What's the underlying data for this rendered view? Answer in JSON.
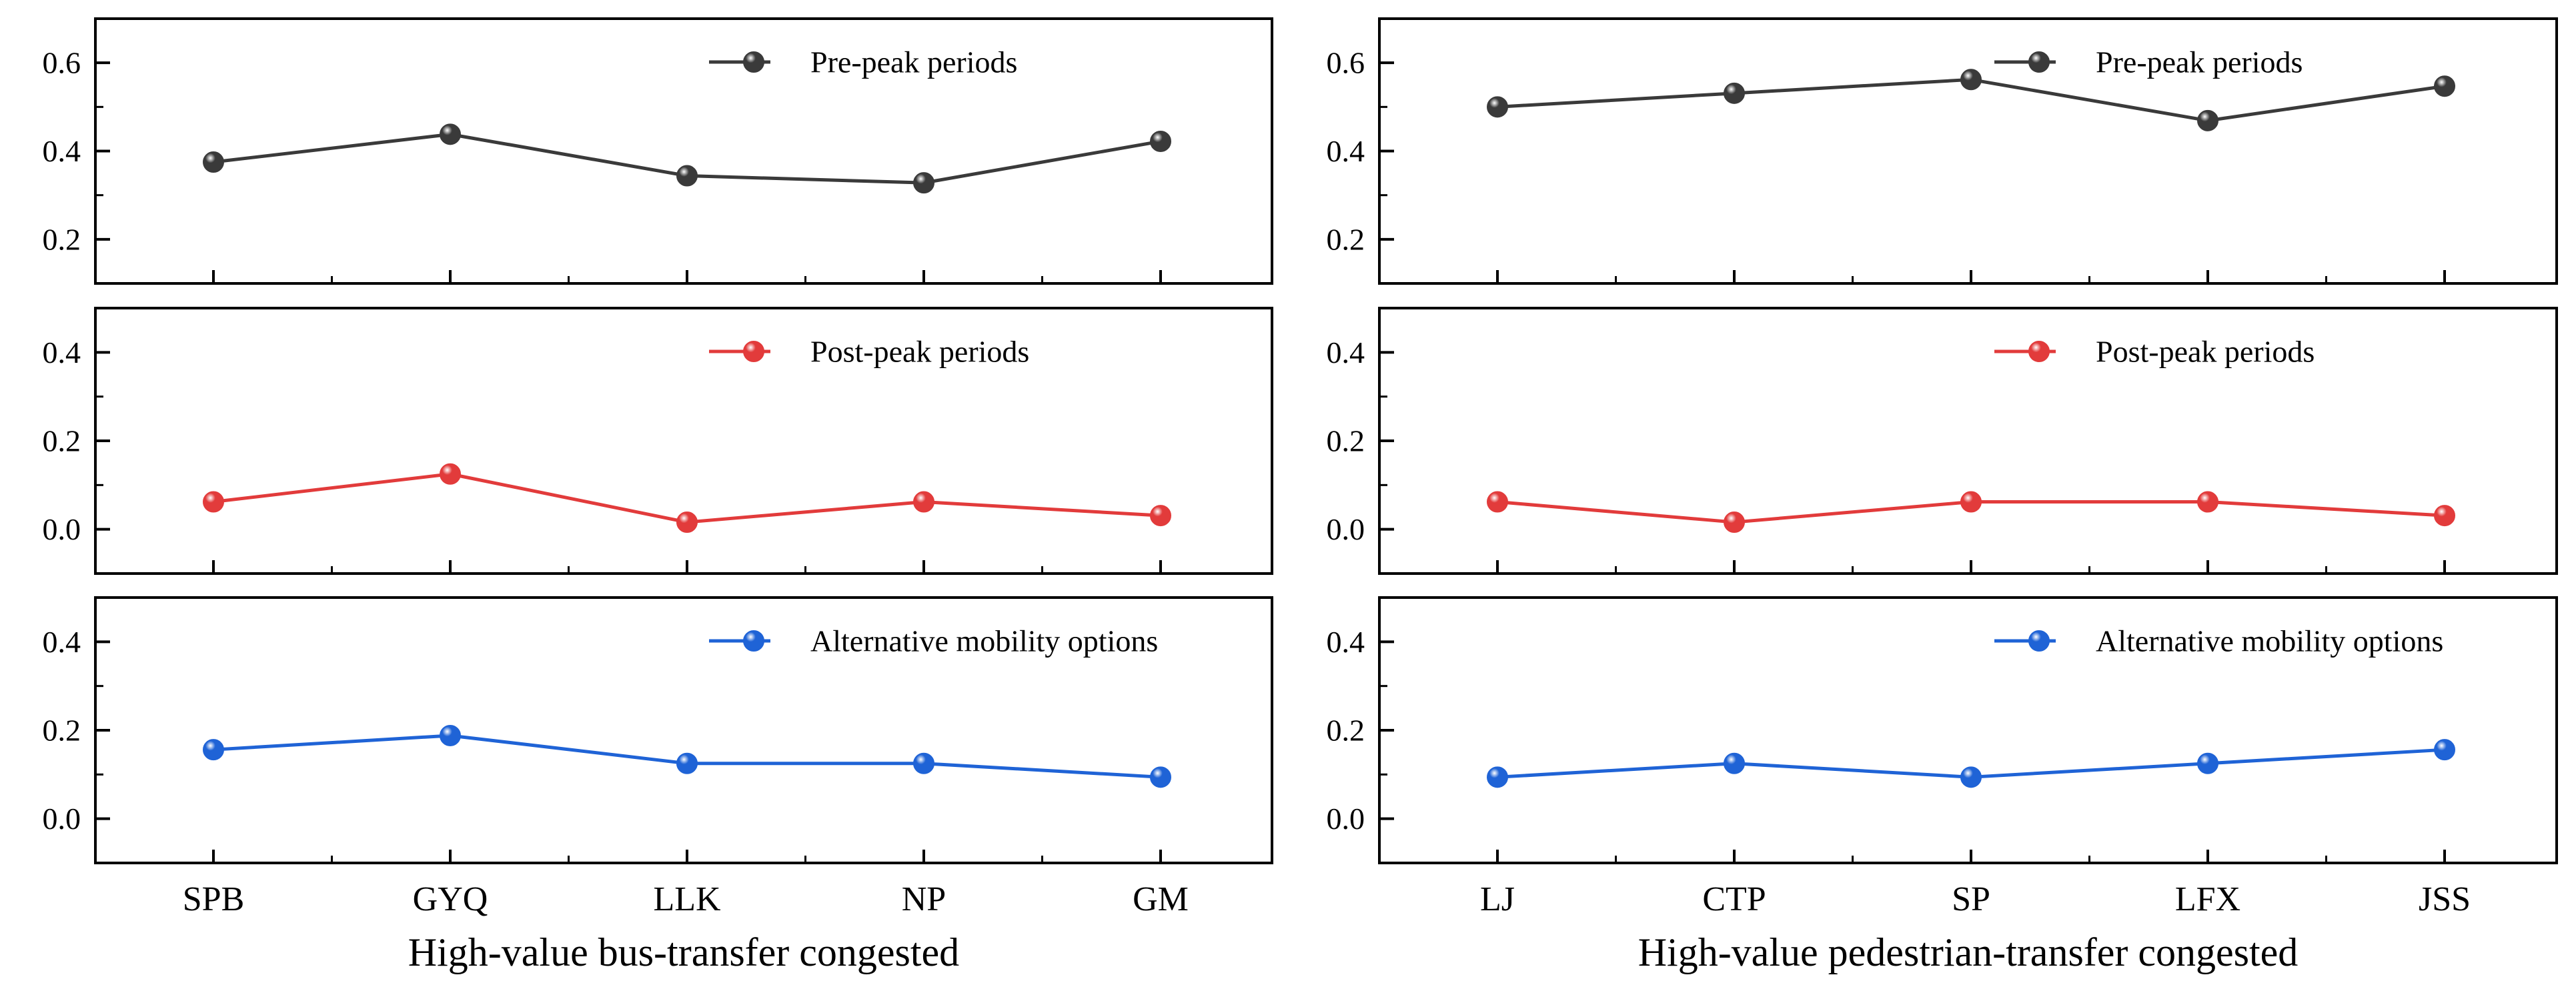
{
  "chart_data": [
    {
      "type": "line",
      "xlabel": "High-value bus-transfer congested",
      "categories": [
        "SPB",
        "GYQ",
        "LLK",
        "NP",
        "GM"
      ],
      "panels": [
        {
          "name": "Pre-peak periods",
          "color": "#3a3a3a",
          "ylim": [
            0.1,
            0.7
          ],
          "yticks": [
            0.2,
            0.4,
            0.6
          ],
          "tick_labels": [
            "0.2",
            "0.4",
            "0.6"
          ],
          "values": [
            0.375,
            0.438,
            0.344,
            0.328,
            0.422
          ]
        },
        {
          "name": "Post-peak periods",
          "color": "#e23b3b",
          "ylim": [
            -0.1,
            0.5
          ],
          "yticks": [
            0.0,
            0.2,
            0.4
          ],
          "tick_labels": [
            "0.0",
            "0.2",
            "0.4"
          ],
          "values": [
            0.062,
            0.125,
            0.016,
            0.062,
            0.031
          ]
        },
        {
          "name": "Alternative mobility options",
          "color": "#1f63d6",
          "ylim": [
            -0.1,
            0.5
          ],
          "yticks": [
            0.0,
            0.2,
            0.4
          ],
          "tick_labels": [
            "0.0",
            "0.2",
            "0.4"
          ],
          "values": [
            0.156,
            0.188,
            0.125,
            0.125,
            0.094
          ]
        }
      ]
    },
    {
      "type": "line",
      "xlabel": "High-value pedestrian-transfer congested",
      "categories": [
        "LJ",
        "CTP",
        "SP",
        "LFX",
        "JSS"
      ],
      "panels": [
        {
          "name": "Pre-peak periods",
          "color": "#3a3a3a",
          "ylim": [
            0.1,
            0.7
          ],
          "yticks": [
            0.2,
            0.4,
            0.6
          ],
          "tick_labels": [
            "0.2",
            "0.4",
            "0.6"
          ],
          "values": [
            0.5,
            0.531,
            0.562,
            0.469,
            0.547
          ]
        },
        {
          "name": "Post-peak periods",
          "color": "#e23b3b",
          "ylim": [
            -0.1,
            0.5
          ],
          "yticks": [
            0.0,
            0.2,
            0.4
          ],
          "tick_labels": [
            "0.0",
            "0.2",
            "0.4"
          ],
          "values": [
            0.062,
            0.016,
            0.062,
            0.062,
            0.031
          ]
        },
        {
          "name": "Alternative mobility options",
          "color": "#1f63d6",
          "ylim": [
            -0.1,
            0.5
          ],
          "yticks": [
            0.0,
            0.2,
            0.4
          ],
          "tick_labels": [
            "0.0",
            "0.2",
            "0.4"
          ],
          "values": [
            0.094,
            0.125,
            0.094,
            0.125,
            0.156
          ]
        }
      ]
    }
  ]
}
